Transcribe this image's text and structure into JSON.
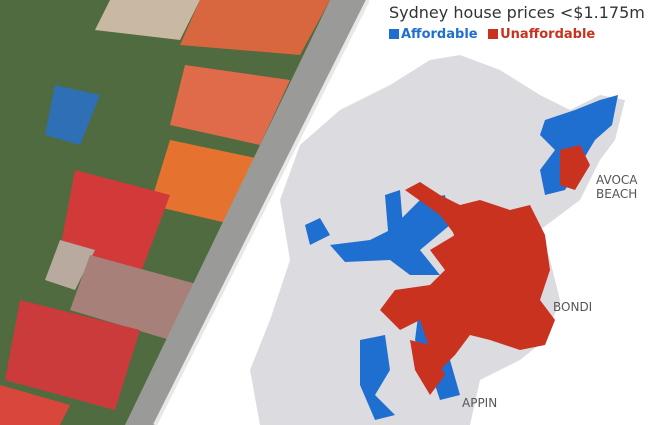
{
  "title": "Sydney house prices <$1.175m",
  "legend": [
    {
      "label": "Affordable",
      "color": "#1f6fd1"
    },
    {
      "label": "Unaffordable",
      "color": "#c8321e"
    }
  ],
  "map_labels": {
    "avoca": "AVOCA BEACH",
    "bondi": "BONDI",
    "appin": "APPIN"
  },
  "colors": {
    "land": "#dcdce0",
    "affordable": "#1f6fd1",
    "unaffordable": "#c8321e"
  }
}
